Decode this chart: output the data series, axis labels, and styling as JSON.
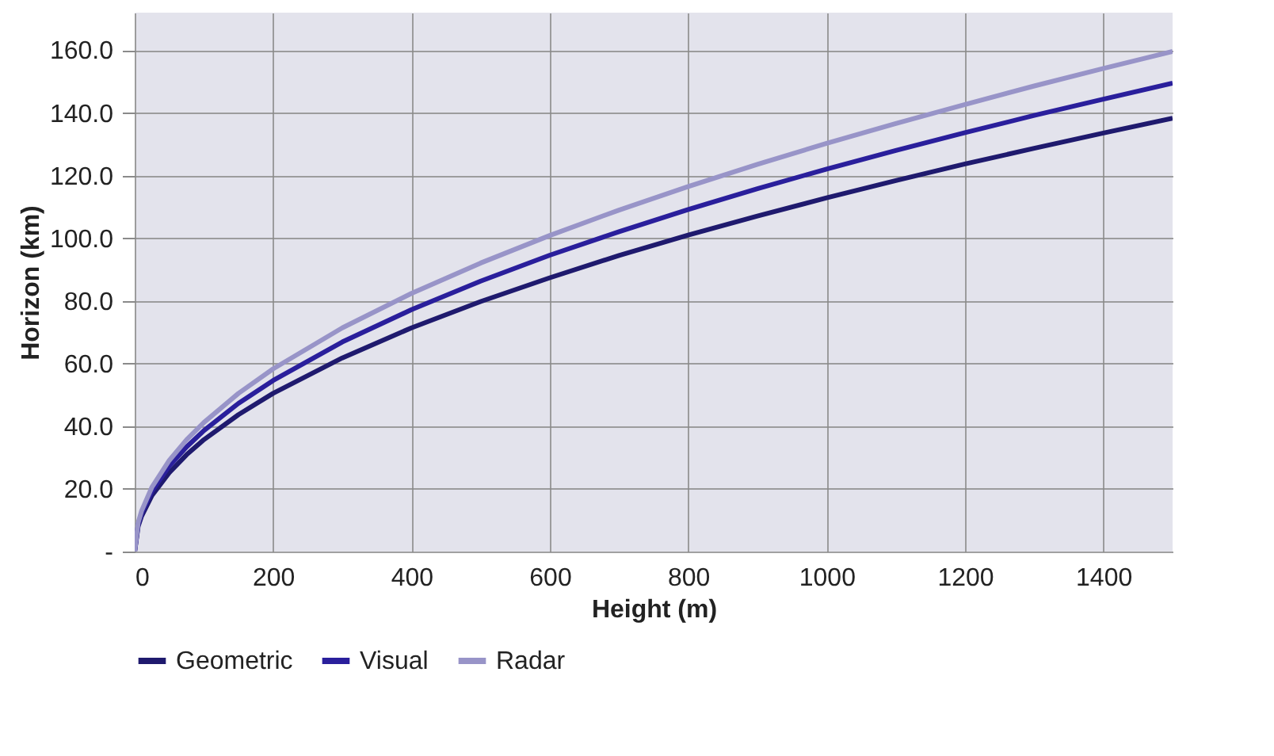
{
  "chart_data": {
    "type": "line",
    "xlabel": "Height (m)",
    "ylabel": "Horizon  (km)",
    "x": [
      0,
      5,
      10,
      25,
      50,
      75,
      100,
      150,
      200,
      300,
      400,
      500,
      600,
      700,
      800,
      900,
      1000,
      1100,
      1200,
      1300,
      1400,
      1500
    ],
    "series": [
      {
        "name": "Geometric",
        "color": "#1f1a6e",
        "values": [
          0,
          8.0,
          11.3,
          17.9,
          25.2,
          30.9,
          35.7,
          43.7,
          50.5,
          61.8,
          71.4,
          79.8,
          87.4,
          94.5,
          101.0,
          107.1,
          112.9,
          118.4,
          123.7,
          128.7,
          133.6,
          138.3
        ]
      },
      {
        "name": "Visual",
        "color": "#2a1f9c",
        "values": [
          0,
          8.6,
          12.2,
          19.3,
          27.3,
          33.4,
          38.6,
          47.3,
          54.6,
          66.9,
          77.2,
          86.3,
          94.6,
          102.1,
          109.2,
          115.8,
          122.1,
          128.0,
          133.7,
          139.2,
          144.4,
          149.5
        ]
      },
      {
        "name": "Radar",
        "color": "#9894c8",
        "values": [
          0,
          9.2,
          13.0,
          20.6,
          29.1,
          35.7,
          41.2,
          50.5,
          58.3,
          71.4,
          82.4,
          92.1,
          100.9,
          109.0,
          116.5,
          123.6,
          130.3,
          136.6,
          142.7,
          148.6,
          154.2,
          159.6
        ]
      }
    ],
    "xlim": [
      0,
      1500
    ],
    "xticks": [
      0,
      200,
      400,
      600,
      800,
      1000,
      1200,
      1400
    ],
    "ylim": [
      0,
      172
    ],
    "yticks": [
      {
        "value": 0,
        "label": "-"
      },
      {
        "value": 20,
        "label": "20.0"
      },
      {
        "value": 40,
        "label": "40.0"
      },
      {
        "value": 60,
        "label": "60.0"
      },
      {
        "value": 80,
        "label": "80.0"
      },
      {
        "value": 100,
        "label": "100.0"
      },
      {
        "value": 120,
        "label": "120.0"
      },
      {
        "value": 140,
        "label": "140.0"
      },
      {
        "value": 160,
        "label": "160.0"
      }
    ],
    "grid": true,
    "legend": "bottom",
    "marker": "none",
    "line_style": "solid"
  }
}
